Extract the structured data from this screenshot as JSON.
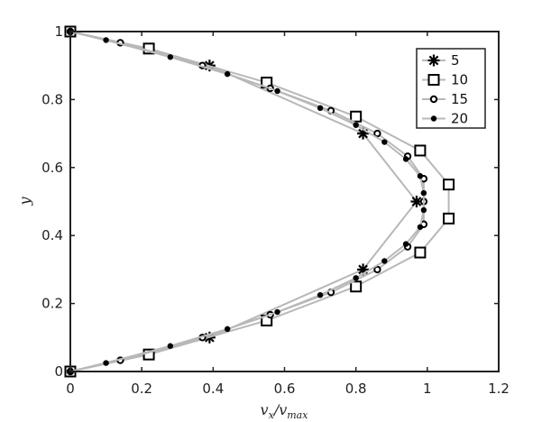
{
  "chart_data": {
    "type": "line",
    "title": "",
    "xlabel": "v_x/v_max",
    "ylabel": "y",
    "xlim": [
      0,
      1.2
    ],
    "ylim": [
      0,
      1
    ],
    "xticks": [
      0,
      0.2,
      0.4,
      0.6,
      0.8,
      1,
      1.2
    ],
    "xtick_labels": [
      "0",
      "0.2",
      "0.4",
      "0.6",
      "0.8",
      "1",
      "1.2"
    ],
    "yticks": [
      0,
      0.2,
      0.4,
      0.6,
      0.8,
      1
    ],
    "ytick_labels": [
      "0",
      "0.2",
      "0.4",
      "0.6",
      "0.8",
      "1"
    ],
    "grid": false,
    "legend_position": "top-right",
    "line_color": "#b8b8b8",
    "marker_color": "#000000",
    "series": [
      {
        "name": "5",
        "marker": "asterisk",
        "points": [
          [
            0,
            0
          ],
          [
            0.39,
            0.1
          ],
          [
            0.82,
            0.3
          ],
          [
            0.97,
            0.5
          ],
          [
            0.82,
            0.7
          ],
          [
            0.39,
            0.9
          ],
          [
            0,
            1
          ]
        ]
      },
      {
        "name": "10",
        "marker": "square",
        "points": [
          [
            0,
            0
          ],
          [
            0.22,
            0.05
          ],
          [
            0.55,
            0.15
          ],
          [
            0.8,
            0.25
          ],
          [
            0.98,
            0.35
          ],
          [
            1.06,
            0.45
          ],
          [
            1.06,
            0.55
          ],
          [
            0.98,
            0.65
          ],
          [
            0.8,
            0.75
          ],
          [
            0.55,
            0.85
          ],
          [
            0.22,
            0.95
          ],
          [
            0,
            1
          ]
        ]
      },
      {
        "name": "15",
        "marker": "circle-open",
        "points": [
          [
            0,
            0
          ],
          [
            0.14,
            0.033
          ],
          [
            0.37,
            0.1
          ],
          [
            0.56,
            0.167
          ],
          [
            0.73,
            0.233
          ],
          [
            0.86,
            0.3
          ],
          [
            0.945,
            0.367
          ],
          [
            0.99,
            0.433
          ],
          [
            0.99,
            0.5
          ],
          [
            0.99,
            0.567
          ],
          [
            0.945,
            0.633
          ],
          [
            0.86,
            0.7
          ],
          [
            0.73,
            0.767
          ],
          [
            0.56,
            0.833
          ],
          [
            0.37,
            0.9
          ],
          [
            0.14,
            0.967
          ],
          [
            0,
            1
          ]
        ]
      },
      {
        "name": "20",
        "marker": "dot",
        "points": [
          [
            0,
            0
          ],
          [
            0.1,
            0.025
          ],
          [
            0.28,
            0.075
          ],
          [
            0.44,
            0.125
          ],
          [
            0.58,
            0.175
          ],
          [
            0.7,
            0.225
          ],
          [
            0.8,
            0.275
          ],
          [
            0.88,
            0.325
          ],
          [
            0.94,
            0.375
          ],
          [
            0.98,
            0.425
          ],
          [
            0.99,
            0.475
          ],
          [
            0.99,
            0.525
          ],
          [
            0.98,
            0.575
          ],
          [
            0.94,
            0.625
          ],
          [
            0.88,
            0.675
          ],
          [
            0.8,
            0.725
          ],
          [
            0.7,
            0.775
          ],
          [
            0.58,
            0.825
          ],
          [
            0.44,
            0.875
          ],
          [
            0.28,
            0.925
          ],
          [
            0.1,
            0.975
          ],
          [
            0,
            1
          ]
        ]
      }
    ]
  }
}
